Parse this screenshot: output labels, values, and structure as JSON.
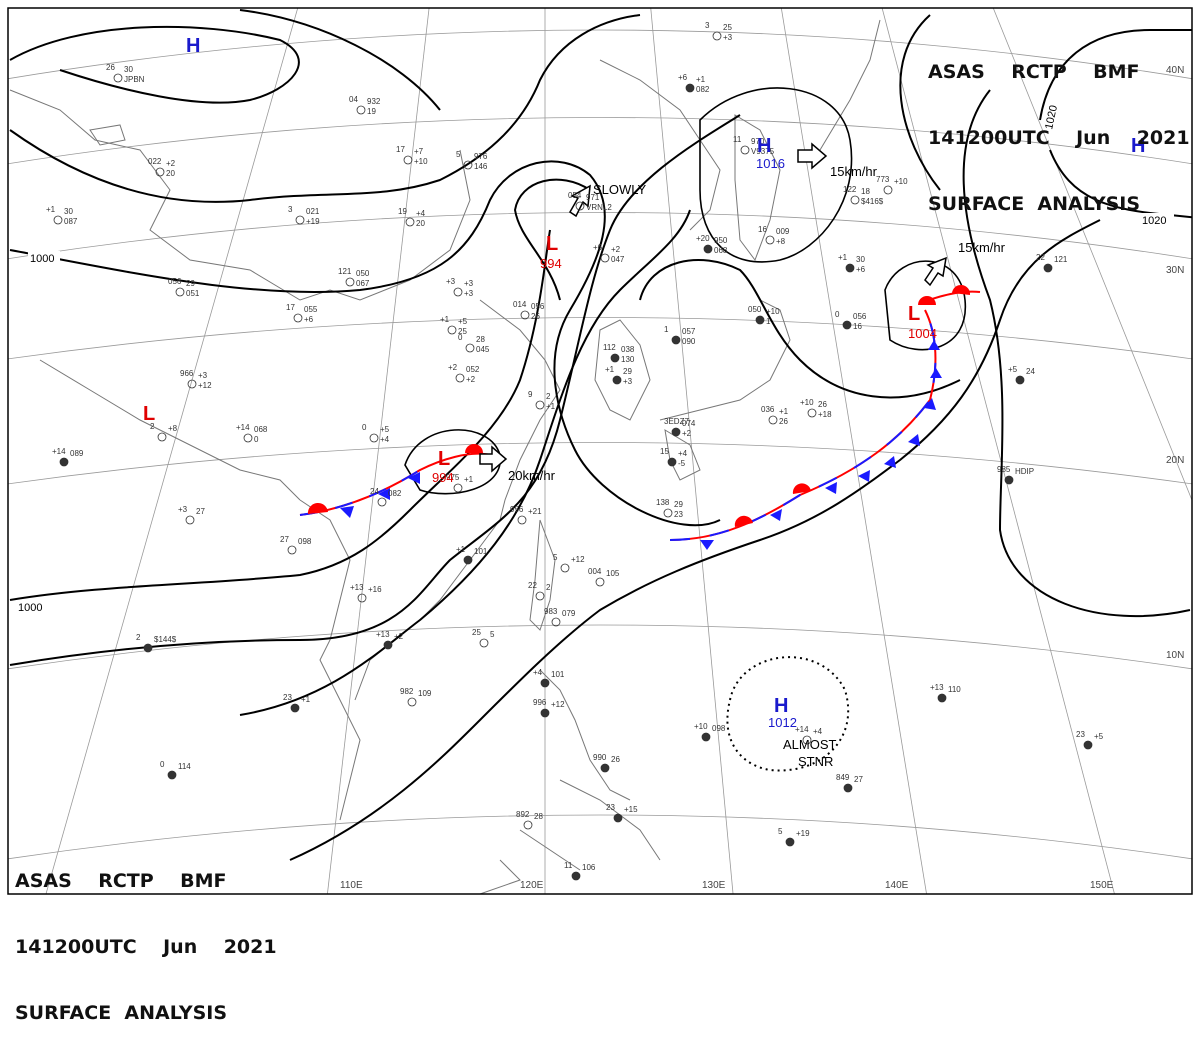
{
  "header": {
    "line1": "ASAS    RCTP    BMF",
    "line2": "141200UTC    Jun    2021",
    "line3": "SURFACE  ANALYSIS"
  },
  "lon_labels": [
    "110E",
    "120E",
    "130E",
    "140E",
    "150E"
  ],
  "lat_labels": [
    "40N",
    "30N",
    "20N",
    "10N"
  ],
  "isobar_labels": [
    "1000",
    "1000",
    "1020",
    "1020"
  ],
  "centers": {
    "h_nw": "H",
    "h_ne": "H",
    "h_japan": {
      "symbol": "H",
      "pressure": "1016"
    },
    "h_pacific": {
      "symbol": "H",
      "pressure": "1012"
    },
    "l_yellow_sea": {
      "symbol": "L",
      "pressure": "994"
    },
    "l_south_china": {
      "symbol": "L",
      "pressure": "994"
    },
    "l_east": {
      "symbol": "L",
      "pressure": "1004"
    },
    "l_west": {
      "symbol": "L"
    }
  },
  "motions": {
    "yellow_sea": "SLOWLY",
    "japan_high": "15km/hr",
    "east_low": "15km/hr",
    "south_low": "20km/hr",
    "pacific_high_line1": "ALMOST",
    "pacific_high_line2": "STNR"
  },
  "station_text": [
    "26",
    "04",
    "5",
    "17",
    "054",
    "+6",
    "3",
    "11",
    "122",
    "+20",
    "16",
    "022",
    "+1",
    "3",
    "19",
    "121",
    "+3",
    "056",
    "17",
    "+1",
    "0",
    "014",
    "+6",
    "+2",
    "966",
    "+14",
    "0",
    "9",
    "112",
    "+1",
    "1",
    "050",
    "+1",
    "0",
    "036",
    "+10",
    "3EDZ7",
    "15",
    "138",
    "+14",
    "2",
    "24",
    "975",
    "+3",
    "27",
    "956",
    "+1",
    "5",
    "004",
    "+13",
    "22",
    "983",
    "+13",
    "25",
    "2",
    "982",
    "23",
    "+4",
    "996",
    "+10",
    "990",
    "0",
    "23",
    "892",
    "11",
    "5",
    "849",
    "+13",
    "23",
    "985",
    "+5",
    "22",
    "773",
    "+14",
    "30",
    "932",
    "976",
    "+7",
    "971",
    "+1",
    "25",
    "970",
    "18",
    "950",
    "009",
    "+2",
    "30",
    "021",
    "+4",
    "050",
    "+3",
    "29",
    "055",
    "+5",
    "28",
    "056",
    "+2",
    "052",
    "+3",
    "068",
    "+5",
    "2",
    "038",
    "29",
    "057",
    "+10",
    "30",
    "056",
    "+1",
    "26",
    "074",
    "+4",
    "29",
    "089",
    "+8",
    "082",
    "+1",
    "27",
    "098",
    "+21",
    "101",
    "+12",
    "105",
    "+16",
    "2",
    "079",
    "+2",
    "5",
    "$144$",
    "109",
    "+1",
    "101",
    "+12",
    "098",
    "26",
    "114",
    "+15",
    "28",
    "106",
    "+19",
    "27",
    "110",
    "+5",
    "HDIP",
    "24",
    "121",
    "+10",
    "+4",
    "JPBN",
    "19",
    "146",
    "+10",
    "VRNL2",
    "082",
    "+3",
    "V9375",
    "$416$",
    "068",
    "+8",
    "20",
    "087",
    "+19",
    "20",
    "067",
    "+3",
    "051",
    "+6",
    "25",
    "045",
    "26",
    "047",
    "+2",
    "+12",
    "0",
    "+4",
    "+1",
    "130",
    "+3",
    "090",
    "1",
    "+6",
    "16",
    "26",
    "+18",
    "+2",
    "-5",
    "23"
  ]
}
